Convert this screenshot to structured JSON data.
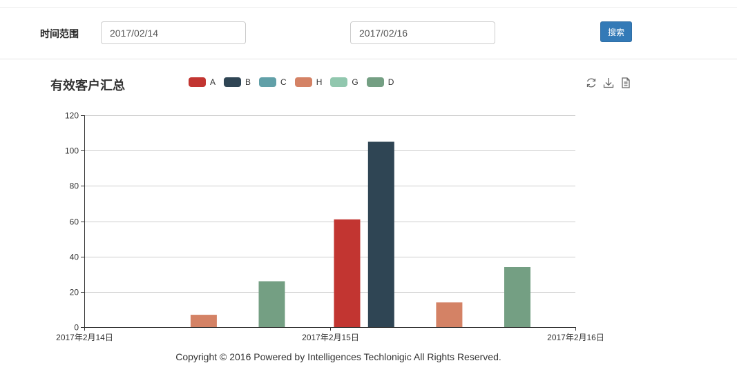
{
  "filter": {
    "label": "时间范围",
    "start_date": "2017/02/14",
    "end_date": "2017/02/16",
    "search_label": "搜索"
  },
  "chart_title": "有效客户汇总",
  "toolbox": {
    "icons": [
      "refresh-icon",
      "download-icon",
      "data-view-icon"
    ]
  },
  "chart_data": {
    "type": "bar",
    "title": "有效客户汇总",
    "xlabel": "",
    "ylabel": "",
    "ylim": [
      0,
      120
    ],
    "yticks": [
      0,
      20,
      40,
      60,
      80,
      100,
      120
    ],
    "x_axis_type": "time",
    "x_ticks": [
      "2017年2月14日",
      "2017年2月15日",
      "2017年2月16日"
    ],
    "x_range": [
      "2017-02-14",
      "2017-02-16"
    ],
    "grid": true,
    "legend_position": "top",
    "series": [
      {
        "name": "A",
        "color": "#c23531"
      },
      {
        "name": "B",
        "color": "#2f4554"
      },
      {
        "name": "C",
        "color": "#61a0a8"
      },
      {
        "name": "H",
        "color": "#d48265"
      },
      {
        "name": "G",
        "color": "#91c7ae"
      },
      {
        "name": "D",
        "color": "#749f83"
      }
    ],
    "bars": [
      {
        "series": "H",
        "date": "2017-02-14",
        "value": 7
      },
      {
        "series": "D",
        "date": "2017-02-14",
        "value": 26
      },
      {
        "series": "A",
        "date": "2017-02-15",
        "value": 61
      },
      {
        "series": "B",
        "date": "2017-02-15",
        "value": 105
      },
      {
        "series": "H",
        "date": "2017-02-15",
        "value": 14
      },
      {
        "series": "D",
        "date": "2017-02-15",
        "value": 34
      }
    ]
  },
  "footer": "Copyright © 2016 Powered by Intelligences Techlonigic All Rights Reserved."
}
